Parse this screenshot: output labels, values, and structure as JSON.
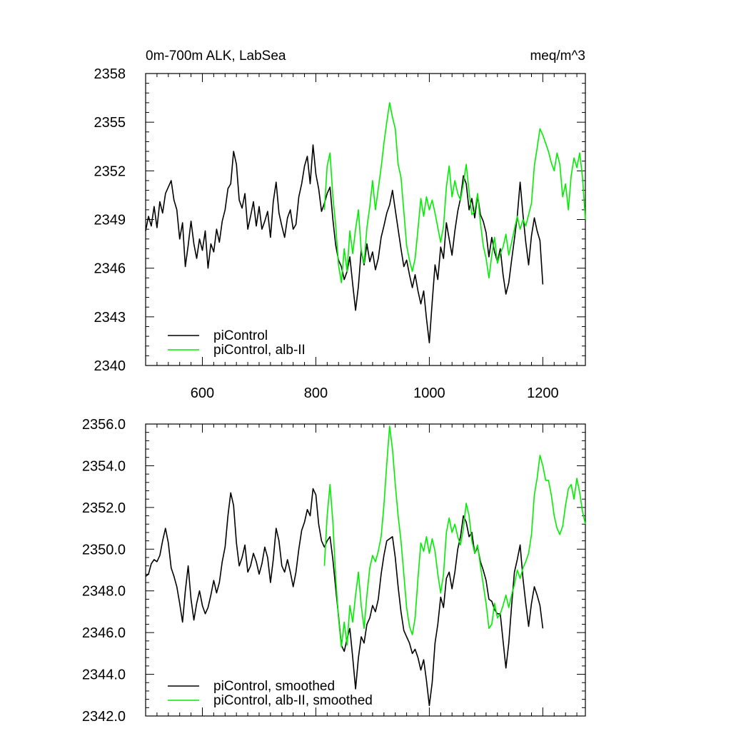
{
  "figure": {
    "title_left": "0m-700m ALK, LabSea",
    "title_right": "meq/m^3"
  },
  "chart_data": [
    {
      "type": "line",
      "xlim": [
        500,
        1275
      ],
      "ylim": [
        2340,
        2358
      ],
      "xticks": [
        600,
        800,
        1000,
        1200
      ],
      "xtick_labels": [
        "600",
        "800",
        "1000",
        "1200"
      ],
      "yticks": [
        2340,
        2343,
        2346,
        2349,
        2352,
        2355,
        2358
      ],
      "ytick_labels": [
        "2340",
        "2343",
        "2346",
        "2349",
        "2352",
        "2355",
        "2358"
      ],
      "legend_placement": "bottom-left",
      "series": [
        {
          "name": "piControl",
          "color": "#000000",
          "x": [
            500,
            505,
            510,
            515,
            520,
            525,
            530,
            535,
            540,
            545,
            550,
            555,
            560,
            565,
            570,
            575,
            580,
            585,
            590,
            595,
            600,
            605,
            610,
            615,
            620,
            625,
            630,
            635,
            640,
            645,
            650,
            655,
            660,
            665,
            670,
            675,
            680,
            685,
            690,
            695,
            700,
            705,
            710,
            715,
            720,
            725,
            730,
            735,
            740,
            745,
            750,
            755,
            760,
            765,
            770,
            775,
            780,
            785,
            790,
            795,
            800,
            805,
            810,
            815,
            820,
            825,
            830,
            835,
            840,
            845,
            850,
            855,
            860,
            865,
            870,
            875,
            880,
            885,
            890,
            895,
            900,
            905,
            910,
            915,
            920,
            925,
            930,
            935,
            940,
            945,
            950,
            955,
            960,
            965,
            970,
            975,
            980,
            985,
            990,
            995,
            1000,
            1005,
            1010,
            1015,
            1020,
            1025,
            1030,
            1035,
            1040,
            1045,
            1050,
            1055,
            1060,
            1065,
            1070,
            1075,
            1080,
            1085,
            1090,
            1095,
            1100,
            1105,
            1110,
            1115,
            1120,
            1125,
            1130,
            1135,
            1140,
            1145,
            1150,
            1155,
            1160,
            1165,
            1170,
            1175,
            1180,
            1185,
            1190,
            1195,
            1200
          ],
          "y": [
            2348.3,
            2349.2,
            2348.6,
            2349.8,
            2348.5,
            2350.1,
            2349.4,
            2350.6,
            2351.0,
            2351.4,
            2350.2,
            2349.6,
            2347.8,
            2348.8,
            2346.1,
            2347.4,
            2348.9,
            2347.5,
            2346.6,
            2347.8,
            2347.1,
            2348.3,
            2346.0,
            2347.5,
            2347.0,
            2348.4,
            2347.6,
            2348.9,
            2349.6,
            2350.9,
            2351.2,
            2353.2,
            2352.4,
            2350.2,
            2349.7,
            2350.6,
            2348.4,
            2349.2,
            2350.1,
            2348.6,
            2349.8,
            2348.4,
            2348.9,
            2349.5,
            2347.9,
            2350.1,
            2351.3,
            2349.4,
            2348.6,
            2347.9,
            2349.1,
            2349.6,
            2348.4,
            2348.7,
            2350.4,
            2351.2,
            2352.3,
            2352.9,
            2351.2,
            2353.6,
            2351.8,
            2350.9,
            2349.5,
            2350.0,
            2350.6,
            2351.0,
            2349.0,
            2347.4,
            2346.5,
            2346.1,
            2345.3,
            2345.8,
            2346.7,
            2345.0,
            2343.4,
            2344.9,
            2347.1,
            2346.2,
            2347.5,
            2346.4,
            2347.0,
            2345.9,
            2346.6,
            2347.9,
            2348.6,
            2349.4,
            2349.9,
            2350.8,
            2349.6,
            2348.4,
            2347.2,
            2346.1,
            2346.5,
            2345.6,
            2344.8,
            2345.6,
            2344.6,
            2343.8,
            2344.6,
            2342.9,
            2341.4,
            2343.9,
            2346.2,
            2345.3,
            2347.3,
            2346.6,
            2348.8,
            2347.8,
            2346.8,
            2348.3,
            2349.5,
            2350.3,
            2351.7,
            2351.2,
            2349.6,
            2350.3,
            2349.1,
            2350.5,
            2349.3,
            2348.9,
            2348.2,
            2346.7,
            2347.9,
            2347.0,
            2346.4,
            2347.2,
            2345.6,
            2344.4,
            2345.1,
            2346.5,
            2347.8,
            2349.2,
            2351.3,
            2349.3,
            2347.6,
            2346.2,
            2348.0,
            2349.1,
            2348.3,
            2347.7,
            2345.0
          ]
        },
        {
          "name": "piControl, alb-II",
          "color": "#00ee00",
          "x": [
            815,
            820,
            825,
            830,
            835,
            840,
            845,
            850,
            855,
            860,
            865,
            870,
            875,
            880,
            885,
            890,
            895,
            900,
            905,
            910,
            915,
            920,
            925,
            930,
            935,
            940,
            945,
            950,
            955,
            960,
            965,
            970,
            975,
            980,
            985,
            990,
            995,
            1000,
            1005,
            1010,
            1015,
            1020,
            1025,
            1030,
            1035,
            1040,
            1045,
            1050,
            1055,
            1060,
            1065,
            1070,
            1075,
            1080,
            1085,
            1090,
            1095,
            1100,
            1105,
            1110,
            1115,
            1120,
            1125,
            1130,
            1135,
            1140,
            1145,
            1150,
            1155,
            1160,
            1165,
            1170,
            1175,
            1180,
            1185,
            1190,
            1195,
            1200,
            1205,
            1210,
            1215,
            1220,
            1225,
            1230,
            1235,
            1240,
            1245,
            1250,
            1255,
            1260,
            1265,
            1270,
            1275
          ],
          "y": [
            2349.6,
            2352.3,
            2353.1,
            2350.4,
            2348.6,
            2346.2,
            2345.1,
            2347.2,
            2345.8,
            2348.3,
            2346.9,
            2348.4,
            2349.6,
            2347.1,
            2346.3,
            2348.5,
            2349.8,
            2351.4,
            2349.6,
            2350.9,
            2352.2,
            2353.7,
            2355.0,
            2356.2,
            2355.3,
            2354.6,
            2352.4,
            2351.6,
            2349.5,
            2347.4,
            2346.5,
            2345.8,
            2346.6,
            2348.4,
            2350.3,
            2349.2,
            2350.4,
            2349.6,
            2350.2,
            2349.4,
            2348.5,
            2347.6,
            2348.6,
            2351.0,
            2352.3,
            2350.4,
            2351.4,
            2350.6,
            2350.2,
            2351.2,
            2352.4,
            2350.7,
            2349.3,
            2349.5,
            2350.6,
            2348.8,
            2347.4,
            2346.6,
            2345.4,
            2346.8,
            2347.9,
            2346.3,
            2346.9,
            2347.3,
            2348.1,
            2346.8,
            2347.6,
            2348.4,
            2349.2,
            2348.4,
            2349.0,
            2348.6,
            2349.3,
            2350.0,
            2352.3,
            2353.4,
            2354.6,
            2354.2,
            2353.7,
            2353.2,
            2352.5,
            2352.0,
            2353.1,
            2352.4,
            2350.4,
            2351.2,
            2349.6,
            2351.7,
            2352.8,
            2352.2,
            2353.1,
            2351.6,
            2349.0
          ]
        }
      ]
    },
    {
      "type": "line",
      "xlim": [
        500,
        1275
      ],
      "ylim": [
        2342.0,
        2356.0
      ],
      "xticks": [
        600,
        800,
        1000,
        1200
      ],
      "yticks": [
        2342,
        2344,
        2346,
        2348,
        2350,
        2352,
        2354,
        2356
      ],
      "ytick_labels": [
        "2342.0",
        "2344.0",
        "2346.0",
        "2348.0",
        "2350.0",
        "2352.0",
        "2354.0",
        "2356.0"
      ],
      "legend_placement": "bottom-left",
      "series": [
        {
          "name": "piControl, smoothed",
          "color": "#000000",
          "x": [
            500,
            505,
            510,
            515,
            520,
            525,
            530,
            535,
            540,
            545,
            550,
            555,
            560,
            565,
            570,
            575,
            580,
            585,
            590,
            595,
            600,
            605,
            610,
            615,
            620,
            625,
            630,
            635,
            640,
            645,
            650,
            655,
            660,
            665,
            670,
            675,
            680,
            685,
            690,
            695,
            700,
            705,
            710,
            715,
            720,
            725,
            730,
            735,
            740,
            745,
            750,
            755,
            760,
            765,
            770,
            775,
            780,
            785,
            790,
            795,
            800,
            805,
            810,
            815,
            820,
            825,
            830,
            835,
            840,
            845,
            850,
            855,
            860,
            865,
            870,
            875,
            880,
            885,
            890,
            895,
            900,
            905,
            910,
            915,
            920,
            925,
            930,
            935,
            940,
            945,
            950,
            955,
            960,
            965,
            970,
            975,
            980,
            985,
            990,
            995,
            1000,
            1005,
            1010,
            1015,
            1020,
            1025,
            1030,
            1035,
            1040,
            1045,
            1050,
            1055,
            1060,
            1065,
            1070,
            1075,
            1080,
            1085,
            1090,
            1095,
            1100,
            1105,
            1110,
            1115,
            1120,
            1125,
            1130,
            1135,
            1140,
            1145,
            1150,
            1155,
            1160,
            1165,
            1170,
            1175,
            1180,
            1185,
            1190,
            1195,
            1200
          ],
          "y": [
            2348.7,
            2348.8,
            2349.3,
            2349.5,
            2349.4,
            2349.7,
            2350.4,
            2351.0,
            2350.3,
            2349.1,
            2348.7,
            2348.2,
            2347.4,
            2346.5,
            2348.0,
            2349.2,
            2347.6,
            2346.6,
            2347.4,
            2348.0,
            2347.3,
            2346.9,
            2347.2,
            2347.8,
            2348.5,
            2347.9,
            2348.4,
            2349.4,
            2350.1,
            2351.6,
            2352.7,
            2352.1,
            2350.3,
            2349.2,
            2349.6,
            2350.2,
            2348.9,
            2349.2,
            2349.8,
            2349.4,
            2348.8,
            2349.3,
            2350.1,
            2349.6,
            2348.4,
            2349.5,
            2351.0,
            2350.4,
            2349.2,
            2348.9,
            2349.5,
            2348.9,
            2348.2,
            2348.9,
            2350.0,
            2350.9,
            2351.3,
            2351.9,
            2351.6,
            2352.9,
            2352.6,
            2351.2,
            2350.4,
            2350.1,
            2350.4,
            2350.6,
            2349.5,
            2348.1,
            2346.8,
            2345.4,
            2345.1,
            2345.7,
            2346.2,
            2344.8,
            2343.3,
            2344.8,
            2345.8,
            2345.5,
            2346.4,
            2346.7,
            2347.3,
            2347.0,
            2347.6,
            2348.8,
            2349.7,
            2350.4,
            2350.5,
            2350.6,
            2349.6,
            2348.2,
            2347.0,
            2346.1,
            2345.8,
            2345.5,
            2345.0,
            2345.2,
            2344.8,
            2344.2,
            2344.7,
            2343.7,
            2342.5,
            2343.6,
            2345.5,
            2346.4,
            2347.7,
            2347.2,
            2348.6,
            2348.9,
            2348.1,
            2348.9,
            2350.0,
            2350.6,
            2351.6,
            2351.3,
            2350.6,
            2350.8,
            2349.8,
            2350.1,
            2349.4,
            2349.0,
            2348.5,
            2347.6,
            2347.5,
            2347.1,
            2346.9,
            2346.9,
            2345.6,
            2344.3,
            2345.5,
            2347.3,
            2348.9,
            2349.5,
            2350.2,
            2348.6,
            2347.4,
            2346.3,
            2347.4,
            2348.2,
            2347.8,
            2347.3,
            2346.2
          ]
        },
        {
          "name": "piControl, alb-II, smoothed",
          "color": "#00ee00",
          "x": [
            815,
            820,
            825,
            830,
            835,
            840,
            845,
            850,
            855,
            860,
            865,
            870,
            875,
            880,
            885,
            890,
            895,
            900,
            905,
            910,
            915,
            920,
            925,
            930,
            935,
            940,
            945,
            950,
            955,
            960,
            965,
            970,
            975,
            980,
            985,
            990,
            995,
            1000,
            1005,
            1010,
            1015,
            1020,
            1025,
            1030,
            1035,
            1040,
            1045,
            1050,
            1055,
            1060,
            1065,
            1070,
            1075,
            1080,
            1085,
            1090,
            1095,
            1100,
            1105,
            1110,
            1115,
            1120,
            1125,
            1130,
            1135,
            1140,
            1145,
            1150,
            1155,
            1160,
            1165,
            1170,
            1175,
            1180,
            1185,
            1190,
            1195,
            1200,
            1205,
            1210,
            1215,
            1220,
            1225,
            1230,
            1235,
            1240,
            1245,
            1250,
            1255,
            1260,
            1265,
            1270,
            1275
          ],
          "y": [
            2349.2,
            2351.6,
            2353.1,
            2351.3,
            2348.6,
            2346.7,
            2345.3,
            2346.5,
            2345.4,
            2347.3,
            2346.5,
            2347.8,
            2348.9,
            2347.3,
            2346.2,
            2347.8,
            2349.1,
            2349.7,
            2349.4,
            2349.9,
            2350.6,
            2352.1,
            2354.1,
            2355.9,
            2354.8,
            2353.1,
            2351.6,
            2350.4,
            2348.8,
            2347.2,
            2346.3,
            2345.9,
            2346.7,
            2348.6,
            2350.3,
            2349.9,
            2350.6,
            2349.8,
            2350.5,
            2349.9,
            2348.8,
            2347.9,
            2348.8,
            2350.8,
            2351.5,
            2350.8,
            2351.2,
            2350.6,
            2350.2,
            2351.0,
            2352.2,
            2351.6,
            2350.4,
            2349.8,
            2350.2,
            2349.2,
            2348.3,
            2347.4,
            2346.2,
            2346.4,
            2347.4,
            2346.7,
            2346.9,
            2347.3,
            2347.8,
            2347.2,
            2347.8,
            2348.3,
            2349.0,
            2348.6,
            2349.1,
            2349.4,
            2349.8,
            2350.7,
            2352.6,
            2353.4,
            2354.5,
            2354.0,
            2353.3,
            2353.3,
            2352.6,
            2351.6,
            2351.0,
            2350.7,
            2351.1,
            2352.1,
            2352.9,
            2353.1,
            2352.4,
            2353.4,
            2352.7,
            2351.8,
            2351.2
          ]
        }
      ]
    }
  ]
}
